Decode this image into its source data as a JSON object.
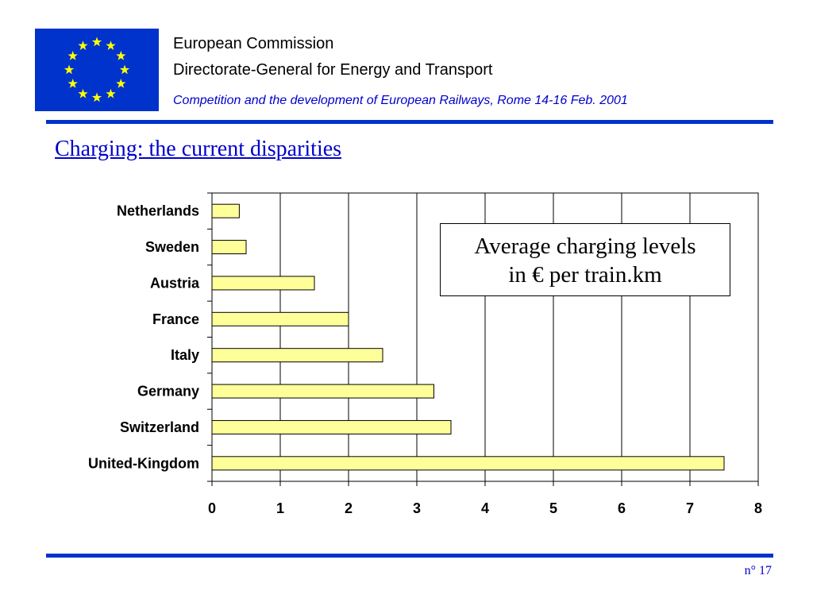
{
  "header": {
    "organization": "European Commission",
    "directorate": "Directorate-General for Energy and Transport",
    "conference": "Competition and the development of European Railways, Rome 14-16 Feb. 2001",
    "logo": "eu-flag-icon"
  },
  "slide": {
    "title": "Charging: the current disparities",
    "page_number": "n° 17"
  },
  "colors": {
    "accent_blue": "#0033cc",
    "title_blue": "#0000cc",
    "flag_star": "#ffff00",
    "bar_fill": "#ffff99",
    "bar_stroke": "#000000"
  },
  "chart_data": {
    "type": "bar",
    "orientation": "horizontal",
    "categories": [
      "Netherlands",
      "Sweden",
      "Austria",
      "France",
      "Italy",
      "Germany",
      "Switzerland",
      "United-Kingdom"
    ],
    "values": [
      0.4,
      0.5,
      1.5,
      2.0,
      2.5,
      3.25,
      3.5,
      7.5
    ],
    "xlim": [
      0,
      8
    ],
    "xticks": [
      0,
      1,
      2,
      3,
      4,
      5,
      6,
      7,
      8
    ],
    "grid": "vertical",
    "annotation": "Average charging levels in € per train.km",
    "annotation_lines": [
      "Average charging levels",
      "in € per train.km"
    ],
    "title": "",
    "xlabel": "",
    "ylabel": ""
  }
}
